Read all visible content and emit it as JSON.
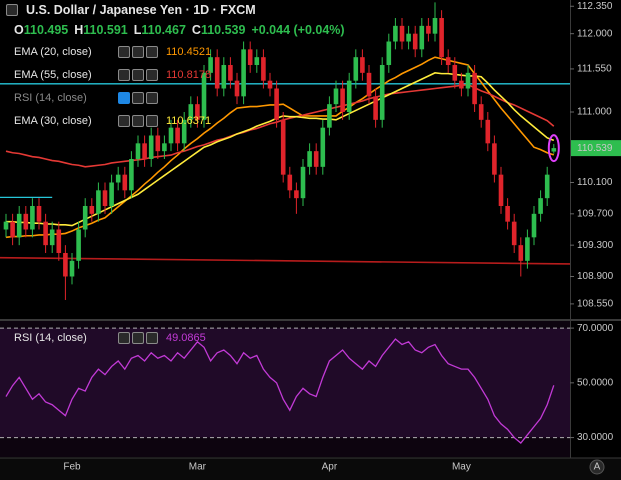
{
  "chart_data": [
    {
      "type": "candlestick",
      "title": "U.S. Dollar / Japanese Yen · 1D · FXCM",
      "ohlc_labels": [
        "O",
        "H",
        "L",
        "C"
      ],
      "change": "+0.044 (+0.04%)",
      "hidden_indicator": "RSI (14, close)",
      "colors": {
        "up": "#2ebd4f",
        "down": "#e0242b"
      },
      "categories": [
        null,
        null,
        null,
        null,
        null,
        null,
        null,
        null,
        null,
        null,
        "Feb",
        null,
        null,
        null,
        null,
        null,
        null,
        null,
        null,
        null,
        null,
        null,
        null,
        null,
        null,
        null,
        null,
        null,
        null,
        "Mar",
        null,
        null,
        null,
        null,
        null,
        null,
        null,
        null,
        null,
        null,
        null,
        null,
        null,
        null,
        null,
        null,
        null,
        null,
        null,
        "Apr",
        null,
        null,
        null,
        null,
        null,
        null,
        null,
        null,
        null,
        null,
        null,
        null,
        null,
        null,
        null,
        null,
        null,
        null,
        null,
        "May",
        null,
        null,
        null,
        null,
        null,
        null,
        null,
        null,
        null,
        null,
        null,
        null,
        null,
        null
      ],
      "open": [
        109.5,
        109.6,
        109.4,
        109.7,
        109.5,
        109.8,
        109.6,
        109.3,
        109.5,
        109.2,
        108.9,
        109.1,
        109.5,
        109.8,
        109.7,
        110.0,
        109.8,
        110.1,
        110.2,
        110.0,
        110.4,
        110.6,
        110.4,
        110.7,
        110.5,
        110.6,
        110.8,
        110.6,
        110.9,
        111.1,
        110.9,
        111.5,
        111.7,
        111.3,
        111.6,
        111.4,
        111.2,
        111.8,
        111.6,
        111.7,
        111.4,
        111.3,
        110.9,
        110.2,
        110.0,
        109.9,
        110.3,
        110.5,
        110.3,
        110.8,
        111.1,
        111.3,
        111.0,
        111.4,
        111.7,
        111.5,
        111.2,
        110.9,
        111.6,
        111.9,
        112.1,
        111.9,
        112.0,
        111.8,
        112.1,
        112.0,
        112.2,
        111.7,
        111.6,
        111.4,
        111.3,
        111.5,
        111.1,
        110.9,
        110.6,
        110.2,
        109.8,
        109.6,
        109.3,
        109.1,
        109.4,
        109.7,
        109.9,
        110.495
      ],
      "high": [
        109.7,
        109.7,
        109.8,
        109.8,
        109.9,
        109.9,
        109.7,
        109.6,
        109.6,
        109.3,
        109.2,
        109.6,
        109.9,
        109.9,
        110.1,
        110.1,
        110.2,
        110.3,
        110.3,
        110.5,
        110.7,
        110.7,
        110.8,
        110.8,
        110.7,
        110.9,
        110.9,
        111.0,
        111.2,
        111.2,
        111.6,
        111.8,
        111.8,
        111.7,
        111.7,
        111.5,
        111.9,
        111.9,
        111.8,
        111.8,
        111.5,
        111.4,
        111.0,
        110.3,
        110.1,
        110.4,
        110.6,
        110.6,
        110.9,
        111.2,
        111.4,
        111.4,
        111.5,
        111.8,
        111.8,
        111.6,
        111.3,
        111.7,
        112.0,
        112.2,
        112.2,
        112.1,
        112.1,
        112.2,
        112.2,
        112.4,
        112.3,
        111.8,
        111.7,
        111.5,
        111.6,
        111.6,
        111.2,
        111.0,
        110.7,
        110.3,
        109.9,
        109.7,
        109.4,
        109.5,
        109.8,
        110.0,
        110.3,
        110.591
      ],
      "low": [
        109.4,
        109.3,
        109.3,
        109.4,
        109.4,
        109.5,
        109.2,
        109.2,
        109.1,
        108.6,
        108.8,
        109.0,
        109.4,
        109.6,
        109.6,
        109.7,
        109.7,
        110.0,
        109.9,
        109.9,
        110.3,
        110.3,
        110.3,
        110.4,
        110.4,
        110.5,
        110.5,
        110.5,
        110.8,
        110.8,
        110.8,
        111.4,
        111.2,
        111.2,
        111.3,
        111.1,
        111.1,
        111.5,
        111.5,
        111.3,
        111.2,
        110.8,
        110.1,
        109.9,
        109.7,
        109.8,
        110.2,
        110.2,
        110.2,
        110.7,
        111.0,
        110.9,
        110.9,
        111.3,
        111.4,
        111.1,
        110.8,
        110.8,
        111.5,
        111.8,
        111.8,
        111.8,
        111.7,
        111.7,
        111.9,
        111.9,
        111.6,
        111.5,
        111.3,
        111.2,
        111.2,
        111.0,
        110.8,
        110.5,
        110.1,
        109.7,
        109.5,
        109.2,
        108.9,
        109.0,
        109.3,
        109.6,
        109.8,
        110.467
      ],
      "close": [
        109.6,
        109.4,
        109.7,
        109.5,
        109.8,
        109.6,
        109.3,
        109.5,
        109.2,
        108.9,
        109.1,
        109.5,
        109.8,
        109.7,
        110.0,
        109.8,
        110.1,
        110.2,
        110.0,
        110.4,
        110.6,
        110.4,
        110.7,
        110.5,
        110.6,
        110.8,
        110.6,
        110.9,
        111.1,
        110.9,
        111.5,
        111.7,
        111.3,
        111.6,
        111.4,
        111.2,
        111.8,
        111.6,
        111.7,
        111.4,
        111.3,
        110.9,
        110.2,
        110.0,
        109.9,
        110.3,
        110.5,
        110.3,
        110.8,
        111.1,
        111.3,
        111.0,
        111.4,
        111.7,
        111.5,
        111.2,
        110.9,
        111.6,
        111.9,
        112.1,
        111.9,
        112.0,
        111.8,
        112.1,
        112.0,
        112.2,
        111.7,
        111.6,
        111.4,
        111.3,
        111.5,
        111.1,
        110.9,
        110.6,
        110.2,
        109.8,
        109.6,
        109.3,
        109.1,
        109.4,
        109.7,
        109.9,
        110.2,
        110.539
      ],
      "series": [
        {
          "name": "EMA (20, close)",
          "color": "#ff9800",
          "values": [
            109.4,
            109.41,
            109.41,
            109.42,
            109.42,
            109.43,
            109.43,
            109.44,
            109.44,
            109.45,
            109.48,
            109.52,
            109.55,
            109.58,
            109.62,
            109.65,
            109.72,
            109.79,
            109.86,
            109.93,
            110.0,
            110.08,
            110.15,
            110.23,
            110.3,
            110.38,
            110.45,
            110.53,
            110.6,
            110.66,
            110.73,
            110.79,
            110.86,
            110.92,
            110.99,
            111.05,
            111.06,
            111.07,
            111.07,
            111.08,
            111.09,
            111.09,
            111.1,
            111.05,
            111.0,
            110.95,
            110.95,
            110.95,
            110.95,
            110.95,
            110.95,
            111.01,
            111.06,
            111.12,
            111.17,
            111.23,
            111.29,
            111.34,
            111.4,
            111.44,
            111.49,
            111.53,
            111.57,
            111.61,
            111.66,
            111.7,
            111.68,
            111.66,
            111.64,
            111.62,
            111.6,
            111.49,
            111.38,
            111.27,
            111.16,
            111.05,
            110.95,
            110.85,
            110.75,
            110.65,
            110.55,
            110.52,
            110.48,
            110.4521
          ]
        },
        {
          "name": "EMA (55, close)",
          "color": "#e53935",
          "values": [
            110.5,
            110.48,
            110.47,
            110.45,
            110.43,
            110.42,
            110.4,
            110.38,
            110.37,
            110.35,
            110.33,
            110.32,
            110.3,
            110.31,
            110.32,
            110.33,
            110.35,
            110.36,
            110.37,
            110.38,
            110.39,
            110.4,
            110.42,
            110.43,
            110.44,
            110.45,
            110.48,
            110.5,
            110.53,
            110.56,
            110.58,
            110.61,
            110.64,
            110.66,
            110.69,
            110.72,
            110.74,
            110.77,
            110.79,
            110.82,
            110.85,
            110.87,
            110.9,
            110.92,
            110.94,
            110.96,
            110.98,
            111.0,
            111.02,
            111.04,
            111.06,
            111.08,
            111.1,
            111.12,
            111.14,
            111.17,
            111.19,
            111.21,
            111.23,
            111.24,
            111.25,
            111.26,
            111.27,
            111.28,
            111.29,
            111.3,
            111.31,
            111.32,
            111.33,
            111.34,
            111.35,
            111.31,
            111.27,
            111.24,
            111.2,
            111.16,
            111.12,
            111.09,
            111.05,
            111.01,
            110.97,
            110.93,
            110.89,
            110.8178
          ]
        },
        {
          "name": "EMA (30, close)",
          "color": "#ffeb3b",
          "values": [
            109.6,
            109.6,
            109.59,
            109.59,
            109.58,
            109.58,
            109.57,
            109.57,
            109.56,
            109.56,
            109.55,
            109.59,
            109.63,
            109.67,
            109.71,
            109.75,
            109.79,
            109.83,
            109.87,
            109.91,
            109.95,
            110.01,
            110.07,
            110.13,
            110.19,
            110.25,
            110.31,
            110.37,
            110.43,
            110.49,
            110.55,
            110.58,
            110.62,
            110.65,
            110.68,
            110.72,
            110.75,
            110.78,
            110.82,
            110.85,
            110.88,
            110.92,
            110.95,
            110.94,
            110.94,
            110.93,
            110.92,
            110.92,
            110.91,
            110.91,
            110.9,
            110.94,
            110.98,
            111.02,
            111.06,
            111.1,
            111.14,
            111.18,
            111.22,
            111.26,
            111.3,
            111.34,
            111.38,
            111.42,
            111.46,
            111.5,
            111.49,
            111.49,
            111.48,
            111.47,
            111.46,
            111.46,
            111.45,
            111.37,
            111.28,
            111.2,
            111.12,
            111.03,
            110.95,
            110.88,
            110.81,
            110.74,
            110.67,
            110.6371
          ]
        }
      ],
      "hlines": [
        {
          "value": 111.36,
          "color": "#26c6da"
        },
        {
          "value": 109.91,
          "color": "#26c6da",
          "span": [
            0,
            7
          ]
        }
      ],
      "trendline": {
        "values": [
          109.14,
          109.06
        ],
        "color": "#b71c1c"
      },
      "ylim": [
        108.37,
        112.43
      ],
      "yticks": [
        {
          "value": 112.35,
          "label": "112.350"
        },
        {
          "value": 112,
          "label": "112.000"
        },
        {
          "value": 111.55,
          "label": "111.550"
        },
        {
          "value": 111,
          "label": "111.000"
        },
        {
          "value": 110.1,
          "label": "110.100"
        },
        {
          "value": 109.7,
          "label": "109.700"
        },
        {
          "value": 109.3,
          "label": "109.300"
        },
        {
          "value": 108.9,
          "label": "108.900"
        },
        {
          "value": 108.55,
          "label": "108.550"
        }
      ]
    },
    {
      "type": "line",
      "name": "RSI (14, close)",
      "color": "#c23ad6",
      "values": [
        45,
        49,
        52,
        48,
        44,
        46,
        43,
        42,
        40,
        38,
        44,
        48,
        47,
        52,
        55,
        53,
        56,
        58,
        55,
        59,
        60,
        58,
        61,
        59,
        60,
        58,
        61,
        59,
        62,
        65,
        63,
        58,
        61,
        62,
        60,
        57,
        61,
        59,
        60,
        55,
        52,
        50,
        44,
        40,
        45,
        48,
        46,
        45,
        52,
        58,
        60,
        62,
        59,
        57,
        55,
        58,
        56,
        60,
        63,
        66,
        64,
        65,
        62,
        61,
        63,
        64,
        60,
        57,
        56,
        55,
        55,
        52,
        48,
        44,
        38,
        35,
        33,
        30,
        28,
        31,
        34,
        37,
        42,
        49.0865
      ],
      "levels": [
        70,
        30
      ],
      "ylim": [
        22.9,
        72.6
      ],
      "yticks": [
        {
          "value": 70,
          "label": "70.0000"
        },
        {
          "value": 50,
          "label": "50.0000"
        },
        {
          "value": 30,
          "label": "30.0000"
        }
      ],
      "auto_button": "A"
    }
  ]
}
